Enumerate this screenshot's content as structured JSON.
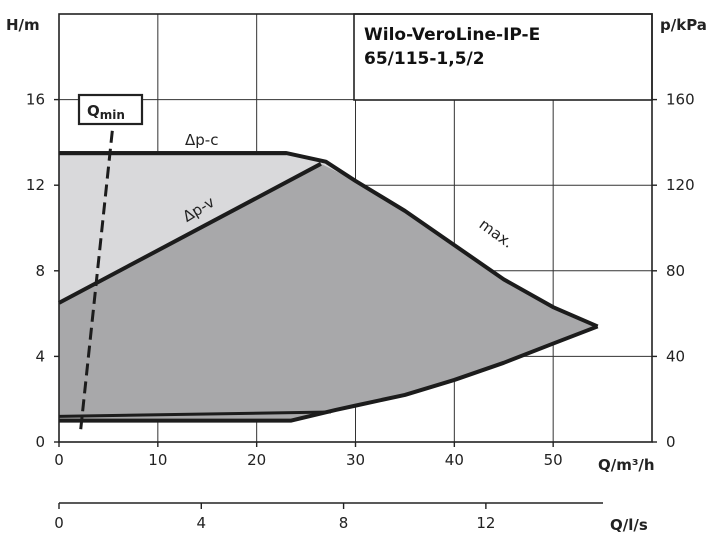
{
  "chart_data": {
    "type": "area",
    "title_lines": [
      "Wilo-VeroLine-IP-E",
      "65/115-1,5/2"
    ],
    "xlabel": "Q/m³/h",
    "ylabel": "H/m",
    "ylabel_right": "p/kPa",
    "xlabel_secondary": "Q/l/s",
    "xlim": [
      0,
      60
    ],
    "ylim": [
      0,
      20
    ],
    "ylim_right": [
      0,
      200
    ],
    "xlim_secondary": [
      0,
      16.67
    ],
    "x_ticks": [
      0,
      10,
      20,
      30,
      40,
      50
    ],
    "y_ticks": [
      0,
      4,
      8,
      12,
      16
    ],
    "y_ticks_right": [
      0,
      40,
      80,
      120,
      160
    ],
    "x_ticks_secondary": [
      0,
      4,
      8,
      12
    ],
    "grid": true,
    "annotations": {
      "qmin": "Qmin",
      "qmin_main": "Q",
      "qmin_sub": "min",
      "dp_c": "Δp-c",
      "dp_v": "Δp-v",
      "max": "max."
    },
    "series": [
      {
        "name": "max.",
        "x": [
          0,
          23,
          27,
          30,
          35,
          40,
          45,
          50,
          54.5,
          50,
          45,
          40,
          35,
          30,
          28,
          23.5,
          0
        ],
        "y": [
          13.5,
          13.5,
          13.1,
          12.2,
          10.8,
          9.2,
          7.6,
          6.3,
          5.4,
          4.6,
          3.7,
          2.9,
          2.2,
          1.7,
          1.5,
          1.0,
          1.0
        ]
      },
      {
        "name": "Δp-c",
        "x": [
          0,
          23
        ],
        "y": [
          13.5,
          13.5
        ]
      },
      {
        "name": "Δp-v",
        "x": [
          0,
          26.5
        ],
        "y": [
          6.5,
          13.0
        ]
      },
      {
        "name": "Qmin",
        "x": [
          2.2,
          5.5
        ],
        "y": [
          0.6,
          15.0
        ]
      }
    ]
  }
}
